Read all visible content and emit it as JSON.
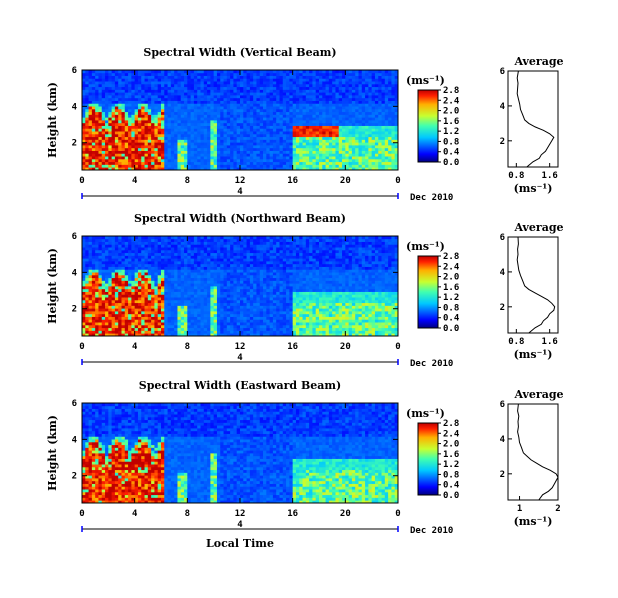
{
  "chart_data": [
    {
      "type": "heatmap",
      "title": "Spectral Width (Vertical Beam)",
      "ylabel": "Height (km)",
      "xticks": [
        "0",
        "4",
        "8",
        "12",
        "16",
        "20",
        "0"
      ],
      "yticks": [
        "2",
        "4",
        "6"
      ],
      "xlim": [
        0,
        24
      ],
      "ylim": [
        0.5,
        6
      ],
      "date_label": "Dec 2010",
      "day_marker": "4",
      "colorbar": {
        "unit": "(ms⁻¹)",
        "ticks": [
          "0.0",
          "0.4",
          "0.8",
          "1.2",
          "1.6",
          "2.0",
          "2.4",
          "2.8"
        ],
        "range": [
          0,
          2.8
        ]
      },
      "average": {
        "title": "Average",
        "xlabel": "(ms⁻¹)",
        "xticks": [
          "0.8",
          "1.6"
        ],
        "xlim": [
          0.6,
          1.8
        ],
        "yticks": [
          "2",
          "4",
          "6"
        ],
        "profile": [
          [
            0.5,
            1.05
          ],
          [
            0.8,
            1.2
          ],
          [
            1.0,
            1.35
          ],
          [
            1.2,
            1.4
          ],
          [
            1.4,
            1.5
          ],
          [
            1.6,
            1.55
          ],
          [
            1.8,
            1.6
          ],
          [
            2.0,
            1.65
          ],
          [
            2.2,
            1.7
          ],
          [
            2.4,
            1.6
          ],
          [
            2.6,
            1.45
          ],
          [
            2.8,
            1.25
          ],
          [
            3.0,
            1.1
          ],
          [
            3.2,
            1.0
          ],
          [
            3.5,
            0.95
          ],
          [
            3.8,
            0.9
          ],
          [
            4.1,
            0.88
          ],
          [
            4.4,
            0.85
          ],
          [
            4.7,
            0.82
          ],
          [
            5.0,
            0.83
          ],
          [
            5.3,
            0.84
          ],
          [
            5.6,
            0.82
          ],
          [
            6.0,
            0.85
          ]
        ]
      }
    },
    {
      "type": "heatmap",
      "title": "Spectral Width (Northward Beam)",
      "ylabel": "Height (km)",
      "xticks": [
        "0",
        "4",
        "8",
        "12",
        "16",
        "20",
        "0"
      ],
      "yticks": [
        "2",
        "4",
        "6"
      ],
      "xlim": [
        0,
        24
      ],
      "ylim": [
        0.5,
        6
      ],
      "date_label": "Dec 2010",
      "day_marker": "4",
      "colorbar": {
        "unit": "(ms⁻¹)",
        "ticks": [
          "0.0",
          "0.4",
          "0.8",
          "1.2",
          "1.6",
          "2.0",
          "2.4",
          "2.8"
        ],
        "range": [
          0,
          2.8
        ]
      },
      "average": {
        "title": "Average",
        "xlabel": "(ms⁻¹)",
        "xticks": [
          "0.8",
          "1.6"
        ],
        "xlim": [
          0.6,
          1.8
        ],
        "yticks": [
          "2",
          "4",
          "6"
        ],
        "profile": [
          [
            0.5,
            1.1
          ],
          [
            0.8,
            1.25
          ],
          [
            1.0,
            1.4
          ],
          [
            1.2,
            1.45
          ],
          [
            1.4,
            1.55
          ],
          [
            1.6,
            1.6
          ],
          [
            1.8,
            1.7
          ],
          [
            2.0,
            1.72
          ],
          [
            2.2,
            1.65
          ],
          [
            2.4,
            1.55
          ],
          [
            2.6,
            1.4
          ],
          [
            2.8,
            1.25
          ],
          [
            3.0,
            1.1
          ],
          [
            3.2,
            1.0
          ],
          [
            3.5,
            0.95
          ],
          [
            3.8,
            0.9
          ],
          [
            4.1,
            0.86
          ],
          [
            4.4,
            0.84
          ],
          [
            4.7,
            0.82
          ],
          [
            5.0,
            0.84
          ],
          [
            5.3,
            0.83
          ],
          [
            5.6,
            0.85
          ],
          [
            6.0,
            0.84
          ]
        ]
      }
    },
    {
      "type": "heatmap",
      "title": "Spectral Width (Eastward Beam)",
      "ylabel": "Height (km)",
      "xticks": [
        "0",
        "4",
        "8",
        "12",
        "16",
        "20",
        "0"
      ],
      "yticks": [
        "2",
        "4",
        "6"
      ],
      "xlim": [
        0,
        24
      ],
      "ylim": [
        0.5,
        6
      ],
      "date_label": "Dec 2010",
      "day_marker": "4",
      "colorbar": {
        "unit": "(ms⁻¹)",
        "ticks": [
          "0.0",
          "0.4",
          "0.8",
          "1.2",
          "1.6",
          "2.0",
          "2.4",
          "2.8"
        ],
        "range": [
          0,
          2.8
        ]
      },
      "average": {
        "title": "Average",
        "xlabel": "(ms⁻¹)",
        "xticks": [
          "1",
          "2"
        ],
        "xlim": [
          0.7,
          2.0
        ],
        "yticks": [
          "2",
          "4",
          "6"
        ],
        "profile": [
          [
            0.5,
            1.5
          ],
          [
            0.8,
            1.6
          ],
          [
            1.0,
            1.75
          ],
          [
            1.2,
            1.85
          ],
          [
            1.4,
            1.9
          ],
          [
            1.6,
            1.95
          ],
          [
            1.8,
            2.0
          ],
          [
            2.0,
            1.95
          ],
          [
            2.2,
            1.8
          ],
          [
            2.4,
            1.6
          ],
          [
            2.6,
            1.45
          ],
          [
            2.8,
            1.3
          ],
          [
            3.0,
            1.2
          ],
          [
            3.2,
            1.1
          ],
          [
            3.5,
            1.05
          ],
          [
            3.8,
            1.0
          ],
          [
            4.1,
            0.98
          ],
          [
            4.4,
            0.95
          ],
          [
            4.7,
            0.97
          ],
          [
            5.0,
            0.96
          ],
          [
            5.3,
            0.98
          ],
          [
            5.6,
            0.95
          ],
          [
            6.0,
            0.97
          ]
        ]
      }
    }
  ],
  "xlabel": "Local Time"
}
